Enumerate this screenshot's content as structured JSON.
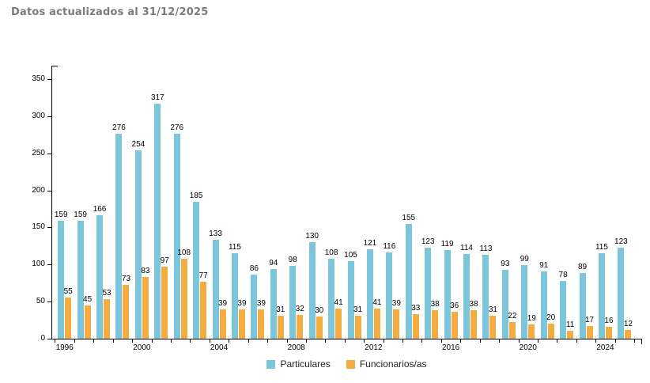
{
  "chart_data": {
    "type": "bar",
    "title": "Datos actualizados al 31/12/2025",
    "categories": [
      1996,
      1997,
      1998,
      1999,
      2000,
      2001,
      2002,
      2003,
      2004,
      2005,
      2006,
      2007,
      2008,
      2009,
      2010,
      2011,
      2012,
      2013,
      2014,
      2015,
      2016,
      2017,
      2018,
      2019,
      2020,
      2021,
      2022,
      2023,
      2024,
      2025
    ],
    "series": [
      {
        "name": "Particulares",
        "color": "#7CC6DB",
        "values": [
          159,
          159,
          166,
          276,
          254,
          317,
          276,
          185,
          133,
          115,
          86,
          94,
          98,
          130,
          108,
          105,
          121,
          116,
          155,
          123,
          119,
          114,
          113,
          93,
          99,
          91,
          78,
          89,
          115,
          123
        ]
      },
      {
        "name": "Funcionarios/as",
        "color": "#F5AD3F",
        "values": [
          55,
          45,
          53,
          73,
          83,
          97,
          108,
          77,
          39,
          39,
          39,
          31,
          32,
          30,
          41,
          31,
          41,
          39,
          33,
          38,
          36,
          38,
          31,
          22,
          19,
          20,
          11,
          17,
          16,
          12
        ]
      }
    ],
    "xlabel": "",
    "ylabel": "",
    "ylim": [
      0,
      350
    ],
    "yticks": [
      0,
      50,
      100,
      150,
      200,
      250,
      300,
      350
    ],
    "xtick_labels": [
      "1996",
      "2000",
      "2004",
      "2008",
      "2012",
      "2016",
      "2020",
      "2024"
    ],
    "grid": false,
    "legend_position": "bottom",
    "value_labels": true,
    "title_color": "#7b7b7b",
    "axis_color": "#000000"
  }
}
